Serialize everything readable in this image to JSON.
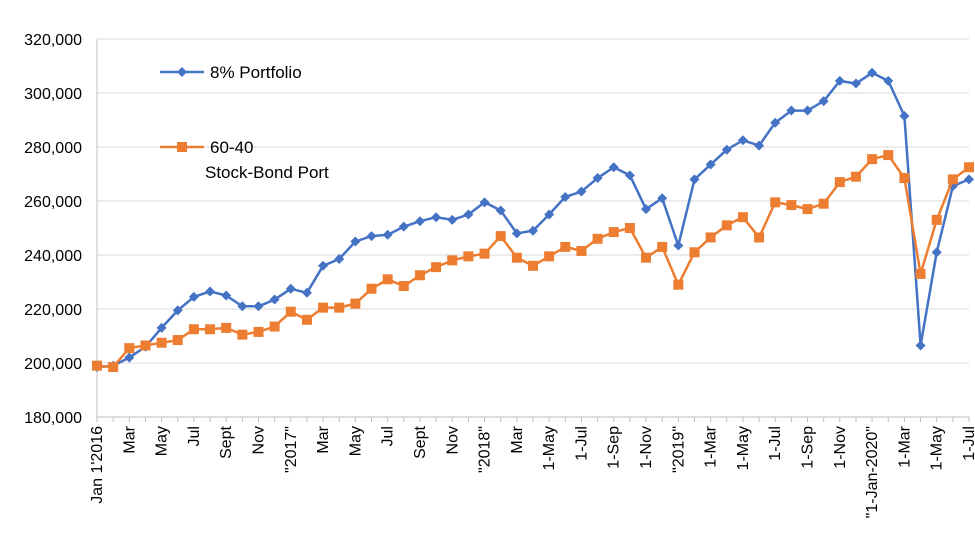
{
  "chart_data": {
    "type": "line",
    "title": "",
    "xlabel": "",
    "ylabel": "",
    "ylim": [
      180000,
      320000
    ],
    "y_ticks": [
      "180,000",
      "200,000",
      "220,000",
      "240,000",
      "260,000",
      "280,000",
      "300,000",
      "320,000"
    ],
    "x_tick_labels": [
      "Jan 1'2016",
      "Mar",
      "May",
      "Jul",
      "Sept",
      "Nov",
      "\"2017\"",
      "Mar",
      "May",
      "Jul",
      "Sept",
      "Nov",
      "\"2018\"",
      "Mar",
      "1-May",
      "1-Jul",
      "1-Sep",
      "1-Nov",
      "\"2019\"",
      "1-Mar",
      "1-May",
      "1-Jul",
      "1-Sep",
      "1-Nov",
      "\"1-Jan-2020\"",
      "1-Mar",
      "1-May",
      "1-Jul"
    ],
    "grid": "horizontal",
    "legend_position": "top-left",
    "series": [
      {
        "name": "8% Portfolio",
        "color": "#4472C4",
        "marker": "diamond",
        "values": [
          198500,
          199000,
          202000,
          206000,
          213000,
          219500,
          224500,
          226500,
          225000,
          221000,
          221000,
          223500,
          227500,
          226000,
          236000,
          238500,
          245000,
          247000,
          247500,
          250500,
          252500,
          254000,
          253000,
          255000,
          259500,
          256500,
          248000,
          249000,
          255000,
          261500,
          263500,
          268500,
          272500,
          269500,
          257000,
          261000,
          243500,
          268000,
          273500,
          279000,
          282500,
          280500,
          289000,
          293500,
          293500,
          297000,
          304500,
          303500,
          307500,
          304500,
          291500,
          206500,
          241000,
          265500,
          268000
        ]
      },
      {
        "name": "60-40",
        "legend_sublabel": "Stock-Bond Port",
        "color": "#ED7D31",
        "marker": "square",
        "values": [
          199000,
          198500,
          205500,
          206500,
          207500,
          208500,
          212500,
          212500,
          213000,
          210500,
          211500,
          213500,
          219000,
          216000,
          220500,
          220500,
          222000,
          227500,
          231000,
          228500,
          232500,
          235500,
          238000,
          239500,
          240500,
          247000,
          239000,
          236000,
          239500,
          243000,
          241500,
          246000,
          248500,
          250000,
          239000,
          243000,
          229000,
          241000,
          246500,
          251000,
          254000,
          246500,
          259500,
          258500,
          257000,
          259000,
          267000,
          269000,
          275500,
          277000,
          268500,
          233000,
          253000,
          268000,
          272500
        ]
      }
    ]
  }
}
